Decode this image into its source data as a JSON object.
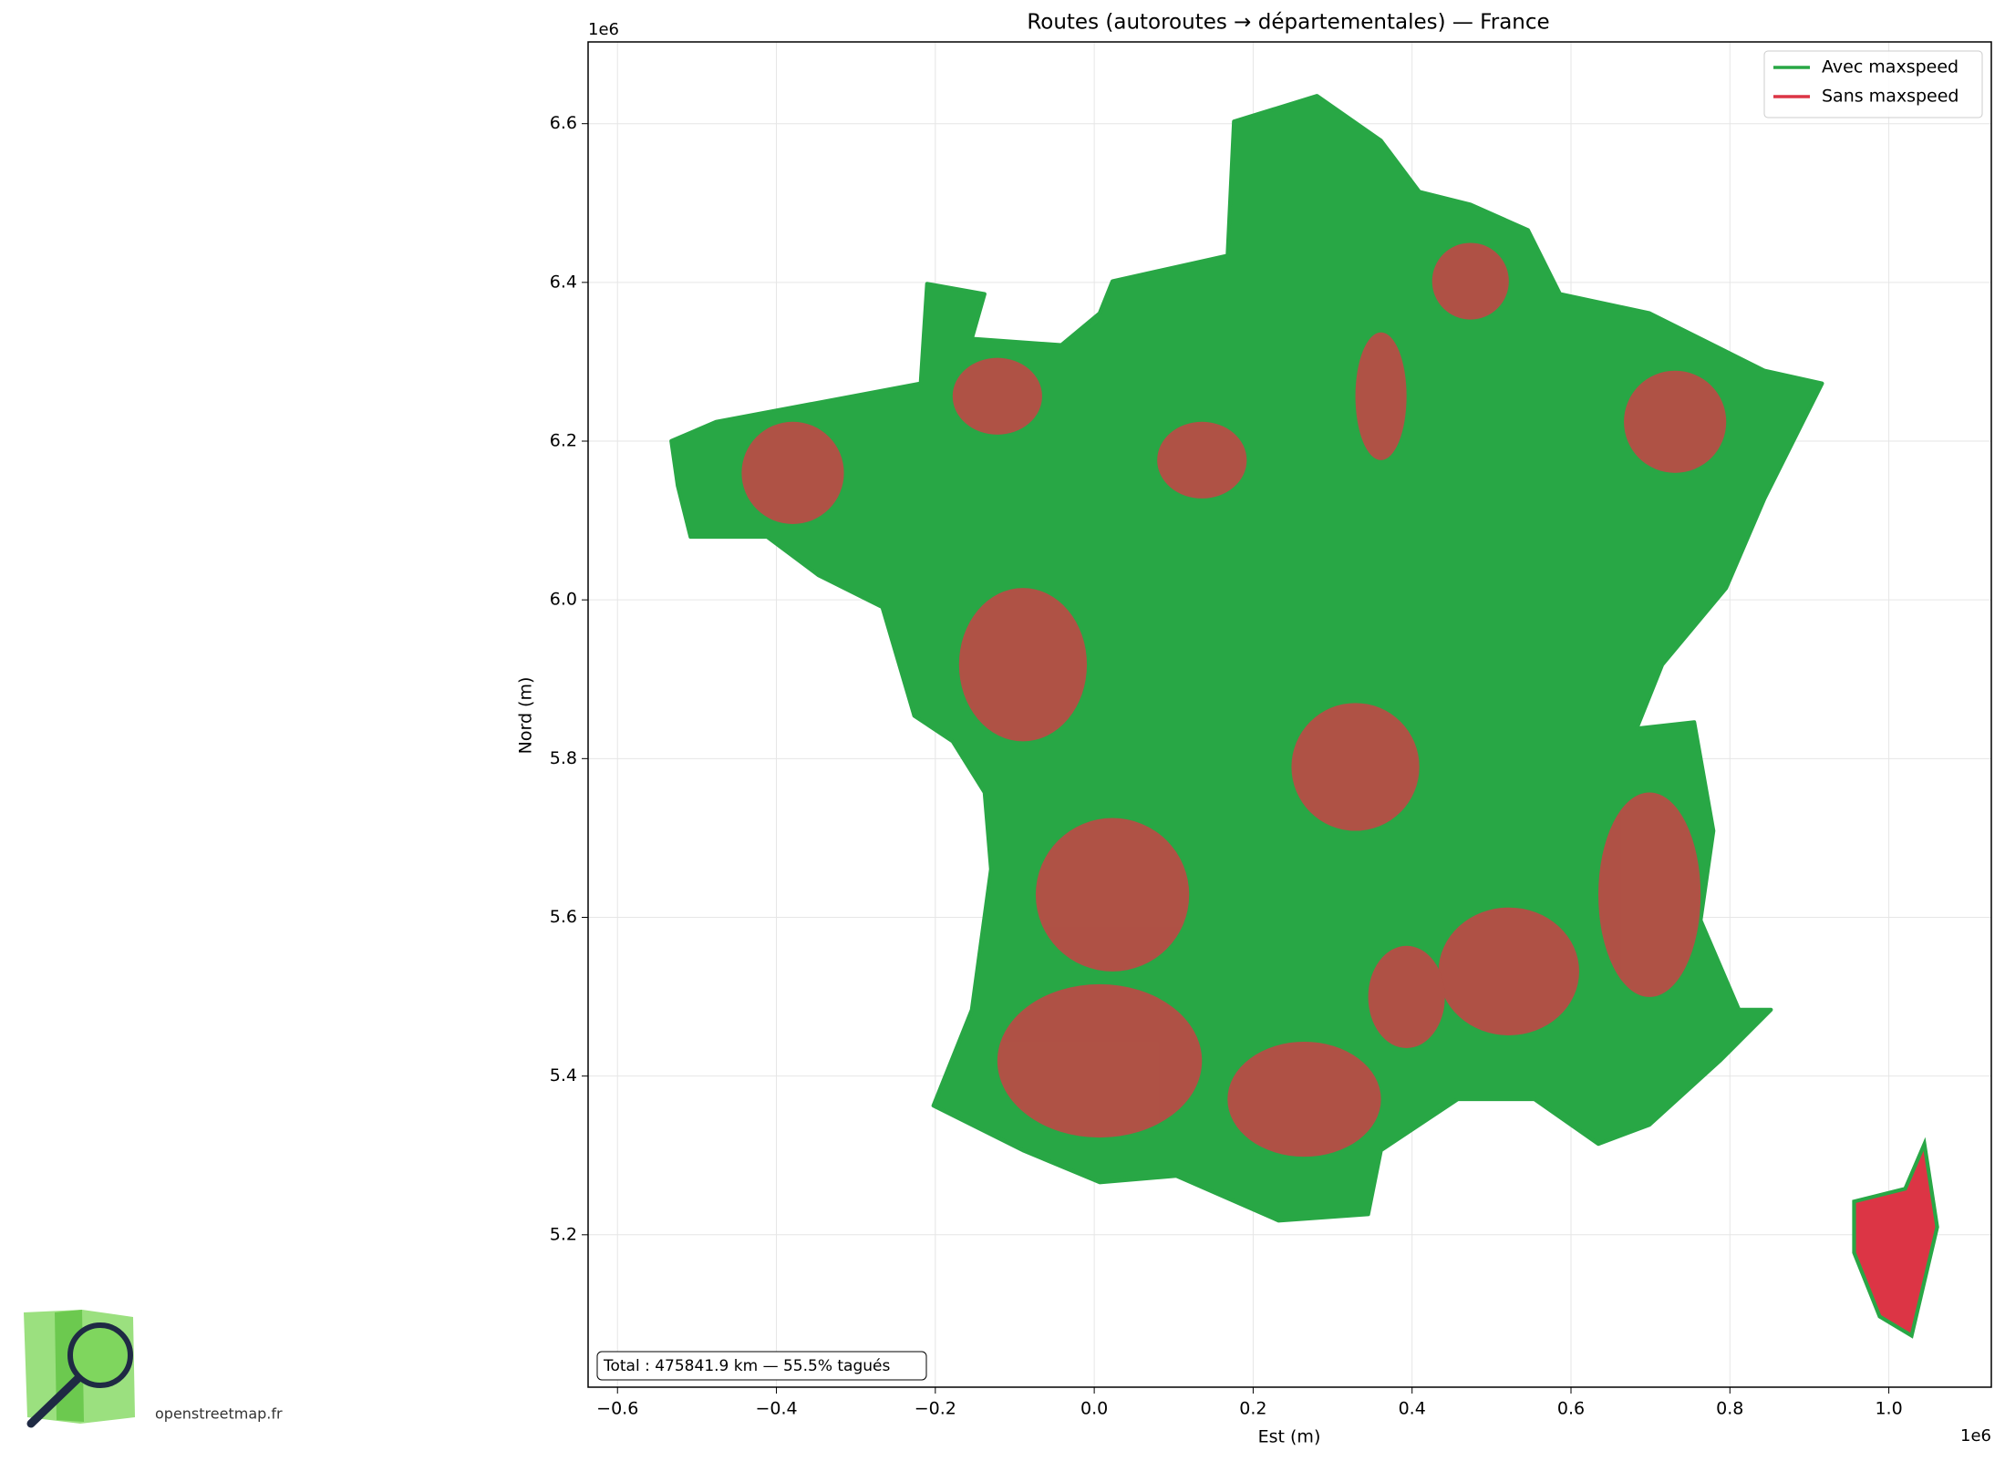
{
  "chart_data": {
    "type": "map",
    "title": "Routes (autoroutes → départementales) — France",
    "x_label": "Est (m)",
    "y_label": "Nord (m)",
    "x_offset": "1e6",
    "y_offset": "1e6",
    "xlim": [
      -0.637,
      1.129
    ],
    "ylim": [
      5.008,
      6.703
    ],
    "xticks": [
      {
        "value": -0.6,
        "label": "−0.6"
      },
      {
        "value": -0.4,
        "label": "−0.4"
      },
      {
        "value": -0.2,
        "label": "−0.2"
      },
      {
        "value": 0,
        "label": "0.0"
      },
      0.2,
      0.4,
      0.6,
      0.8,
      {
        "value": 1,
        "label": "1.0"
      }
    ],
    "yticks": [
      5.2,
      5.4,
      5.6,
      5.8,
      {
        "value": 6,
        "label": "6.0"
      },
      6.2,
      6.4,
      6.6
    ],
    "grid": true,
    "legend": "upper right",
    "series": [
      {
        "name": "Avec maxspeed",
        "color": "#28a745"
      },
      {
        "name": "Sans maxspeed",
        "color": "#dc3545"
      }
    ],
    "annotation": "Total : 475841.9 km — 55.5% tagués"
  },
  "logo": {
    "text": "openstreetmap.fr"
  }
}
